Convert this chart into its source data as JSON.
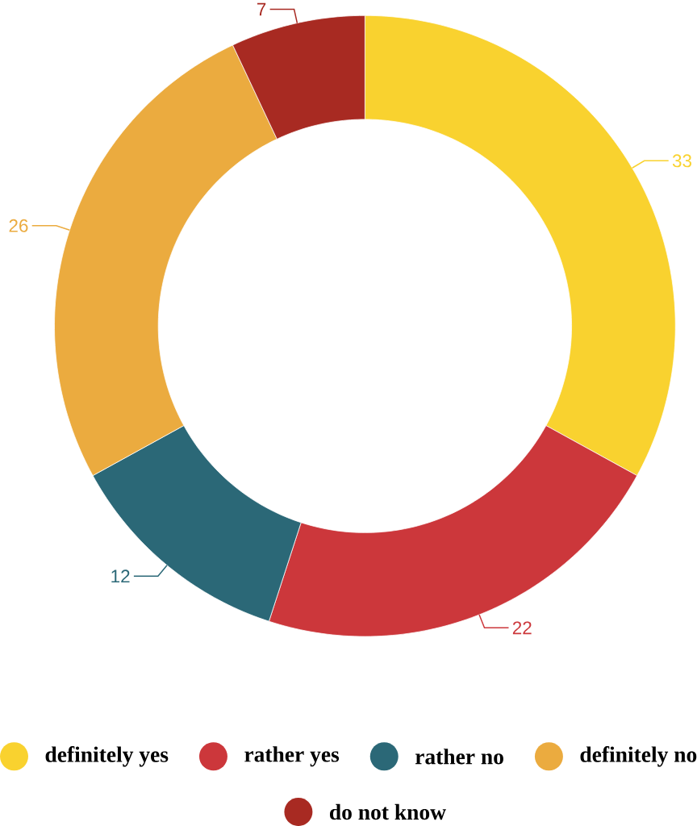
{
  "chart_data": {
    "type": "donut",
    "categories": [
      "definitely yes",
      "rather yes",
      "rather no",
      "definitely no",
      "do not know"
    ],
    "values": [
      33,
      22,
      12,
      26,
      7
    ],
    "colors": [
      "#f9d22f",
      "#cc373b",
      "#2b6877",
      "#ebab3f",
      "#a82a22"
    ],
    "data_labels": true,
    "legend": "bottom"
  }
}
